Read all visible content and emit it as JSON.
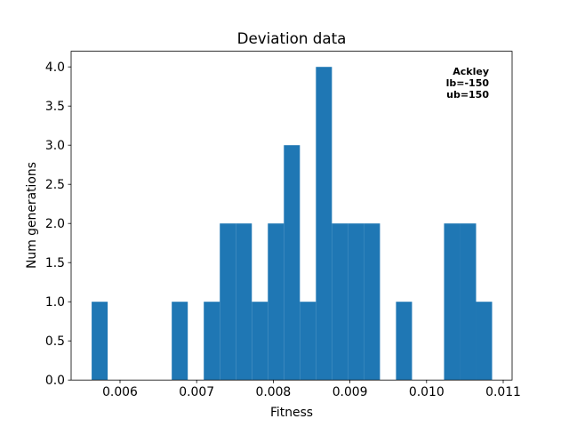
{
  "chart_data": {
    "type": "histogram",
    "title": "Deviation data",
    "x_label": "Fitness",
    "y_label": "Num generations",
    "annotation": [
      "Ackley",
      "lb=-150",
      "ub=150"
    ],
    "color": "#1f77b4",
    "bins": [
      0.00563,
      0.005839,
      0.006048,
      0.006257,
      0.006466,
      0.006675,
      0.006884,
      0.007093,
      0.007302,
      0.007511,
      0.00772,
      0.007929,
      0.008138,
      0.008347,
      0.008556,
      0.008765,
      0.008974,
      0.009183,
      0.009392,
      0.009601,
      0.00981,
      0.010019,
      0.010228,
      0.010437,
      0.010646,
      0.010855
    ],
    "values": [
      1,
      0,
      0,
      0,
      0,
      1,
      0,
      1,
      2,
      2,
      1,
      2,
      3,
      1,
      4,
      2,
      2,
      2,
      0,
      1,
      0,
      0,
      2,
      2,
      1
    ],
    "xlim": [
      0.005362,
      0.011116
    ],
    "ylim": [
      0,
      4.2
    ],
    "xticks": [
      0.006,
      0.007,
      0.008,
      0.009,
      {
        "value": 0.01,
        "label": "0.010"
      },
      0.011
    ],
    "yticks": [
      {
        "value": 0,
        "label": "0.0"
      },
      0.5,
      {
        "value": 1,
        "label": "1.0"
      },
      1.5,
      {
        "value": 2,
        "label": "2.0"
      },
      2.5,
      {
        "value": 3,
        "label": "3.0"
      },
      3.5,
      {
        "value": 4,
        "label": "4.0"
      }
    ]
  }
}
